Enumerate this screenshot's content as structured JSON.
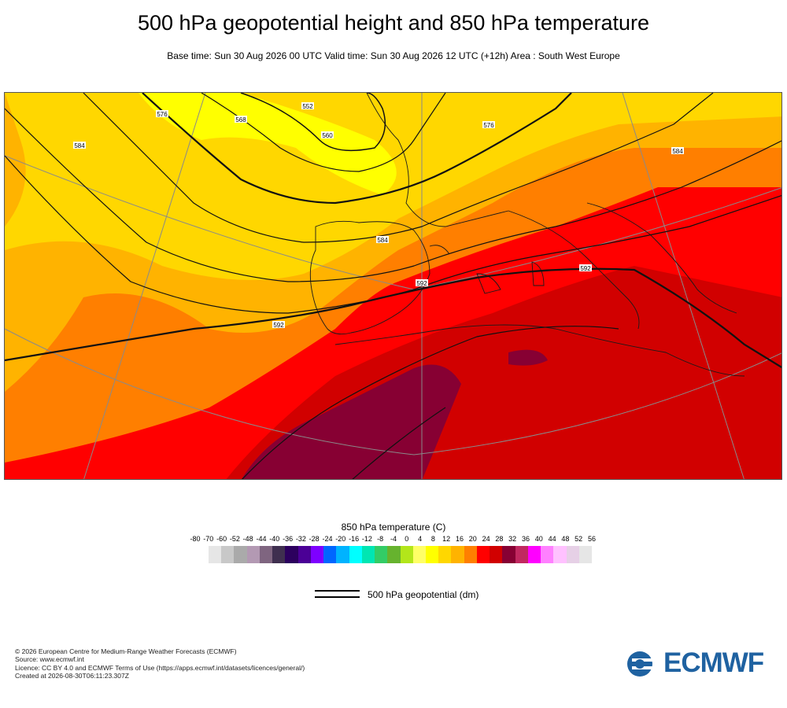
{
  "header": {
    "title": "500 hPa geopotential height and 850 hPa temperature",
    "subtitle": "Base time: Sun 30 Aug 2026 00 UTC Valid time: Sun 30 Aug 2026 12 UTC (+12h) Area : South West Europe"
  },
  "map": {
    "contour_labels": [
      {
        "id": "c576a",
        "text": "576"
      },
      {
        "id": "c568a",
        "text": "568"
      },
      {
        "id": "c552",
        "text": "552"
      },
      {
        "id": "c560",
        "text": "560"
      },
      {
        "id": "c576b",
        "text": "576"
      },
      {
        "id": "c584a",
        "text": "584"
      },
      {
        "id": "c584b",
        "text": "584"
      },
      {
        "id": "c584c",
        "text": "584"
      },
      {
        "id": "c592a",
        "text": "592"
      },
      {
        "id": "c592b",
        "text": "592"
      },
      {
        "id": "c592c",
        "text": "592"
      }
    ],
    "colors": {
      "yellow": "#ffff00",
      "gold": "#ffd700",
      "amber": "#ffb300",
      "orange": "#ff7f00",
      "red": "#ff0000",
      "darkred": "#d10000",
      "maroon": "#870033"
    }
  },
  "legend": {
    "title": "850 hPa temperature (C)",
    "ticks": [
      "-80",
      "-70",
      "-60",
      "-52",
      "-48",
      "-44",
      "-40",
      "-36",
      "-32",
      "-28",
      "-24",
      "-20",
      "-16",
      "-12",
      "-8",
      "-4",
      "0",
      "4",
      "8",
      "12",
      "16",
      "20",
      "24",
      "28",
      "32",
      "36",
      "40",
      "44",
      "48",
      "52",
      "56"
    ],
    "swatch_colors": [
      "#e6e6e6",
      "#c8c8c8",
      "#aaaaaa",
      "#b399b3",
      "#7f6580",
      "#3f2f4f",
      "#2c005e",
      "#4b0096",
      "#7e00ff",
      "#0066ff",
      "#00b3ff",
      "#00ffff",
      "#00e6b3",
      "#33cc66",
      "#66b32e",
      "#b3e61a",
      "#ffff66",
      "#ffff00",
      "#ffd700",
      "#ffb300",
      "#ff7f00",
      "#ff0000",
      "#d10000",
      "#870033",
      "#c12860",
      "#ff00ff",
      "#ff80ff",
      "#ffc1ff",
      "#e6d0e6",
      "#e6e6e6"
    ],
    "line_label": "500 hPa geopotential (dm)"
  },
  "footer": {
    "lines": [
      "© 2026 European Centre for Medium-Range Weather Forecasts (ECMWF)",
      "Source: www.ecmwf.int",
      "Licence: CC BY 4.0 and ECMWF Terms of Use (https://apps.ecmwf.int/datasets/licences/general/)",
      "Created at 2026-08-30T06:11:23.307Z"
    ],
    "logo_text": "ECMWF",
    "logo_color": "#1f62a1"
  }
}
